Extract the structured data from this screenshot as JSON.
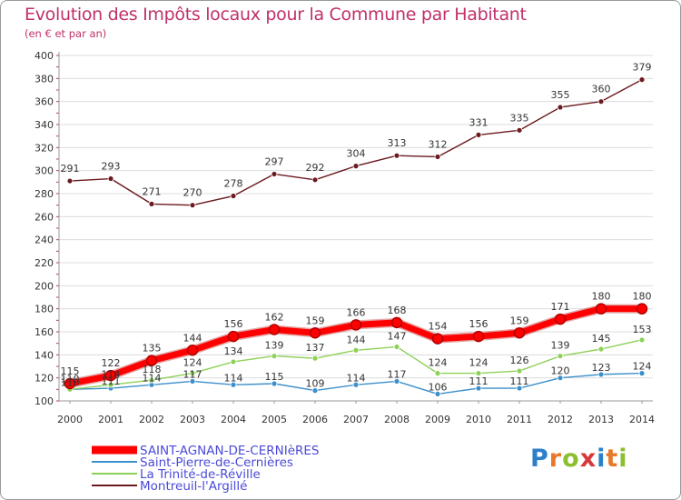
{
  "chart_data": {
    "type": "line",
    "title": "Evolution des Impôts locaux pour la Commune par Habitant",
    "subtitle": "(en € et par an)",
    "xlabel": "",
    "ylabel": "",
    "ylim": [
      100,
      400
    ],
    "yticks": [
      100,
      120,
      140,
      160,
      180,
      200,
      220,
      240,
      260,
      280,
      300,
      320,
      340,
      360,
      380,
      400
    ],
    "categories": [
      "2000",
      "2001",
      "2002",
      "2003",
      "2004",
      "2005",
      "2006",
      "2007",
      "2008",
      "2009",
      "2010",
      "2011",
      "2012",
      "2013",
      "2014"
    ],
    "legend_position": "bottom-left",
    "series": [
      {
        "name": "SAINT-AGNAN-DE-CERNIèRES",
        "color": "#ff0000",
        "values": [
          115,
          122,
          135,
          144,
          156,
          162,
          159,
          166,
          168,
          154,
          156,
          159,
          171,
          180,
          180
        ]
      },
      {
        "name": "Saint-Pierre-de-Cernières",
        "color": "#3c8fcb",
        "values": [
          110,
          111,
          114,
          117,
          114,
          115,
          109,
          114,
          117,
          106,
          111,
          111,
          120,
          123,
          124
        ]
      },
      {
        "name": "La Trinité-de-Réville",
        "color": "#8ed158",
        "values": [
          110,
          114,
          118,
          124,
          134,
          139,
          137,
          144,
          147,
          124,
          124,
          126,
          139,
          145,
          153
        ]
      },
      {
        "name": "Montreuil-l'Argillé",
        "color": "#6b1a1f",
        "values": [
          291,
          293,
          271,
          270,
          278,
          297,
          292,
          304,
          313,
          312,
          331,
          335,
          355,
          360,
          379
        ]
      }
    ]
  },
  "logo": {
    "letters": [
      "P",
      "r",
      "o",
      "x",
      "i",
      "t",
      "i"
    ]
  }
}
